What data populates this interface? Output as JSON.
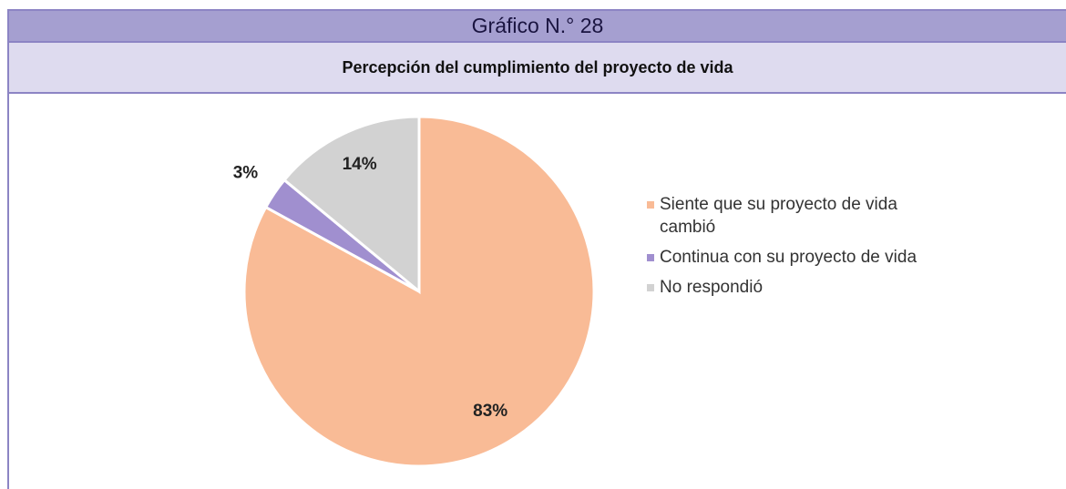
{
  "chart_data": {
    "type": "pie",
    "title": "Gráfico N.° 28",
    "subtitle": "Percepción del cumplimiento del proyecto de vida",
    "categories": [
      "Siente que su proyecto de vida cambió",
      "Continua con su proyecto de vida",
      "No respondió"
    ],
    "values": [
      83,
      3,
      14
    ],
    "value_labels": [
      "83%",
      "3%",
      "14%"
    ],
    "colors": [
      "#f9bb96",
      "#a08fcf",
      "#d2d2d2"
    ],
    "legend": "right"
  }
}
